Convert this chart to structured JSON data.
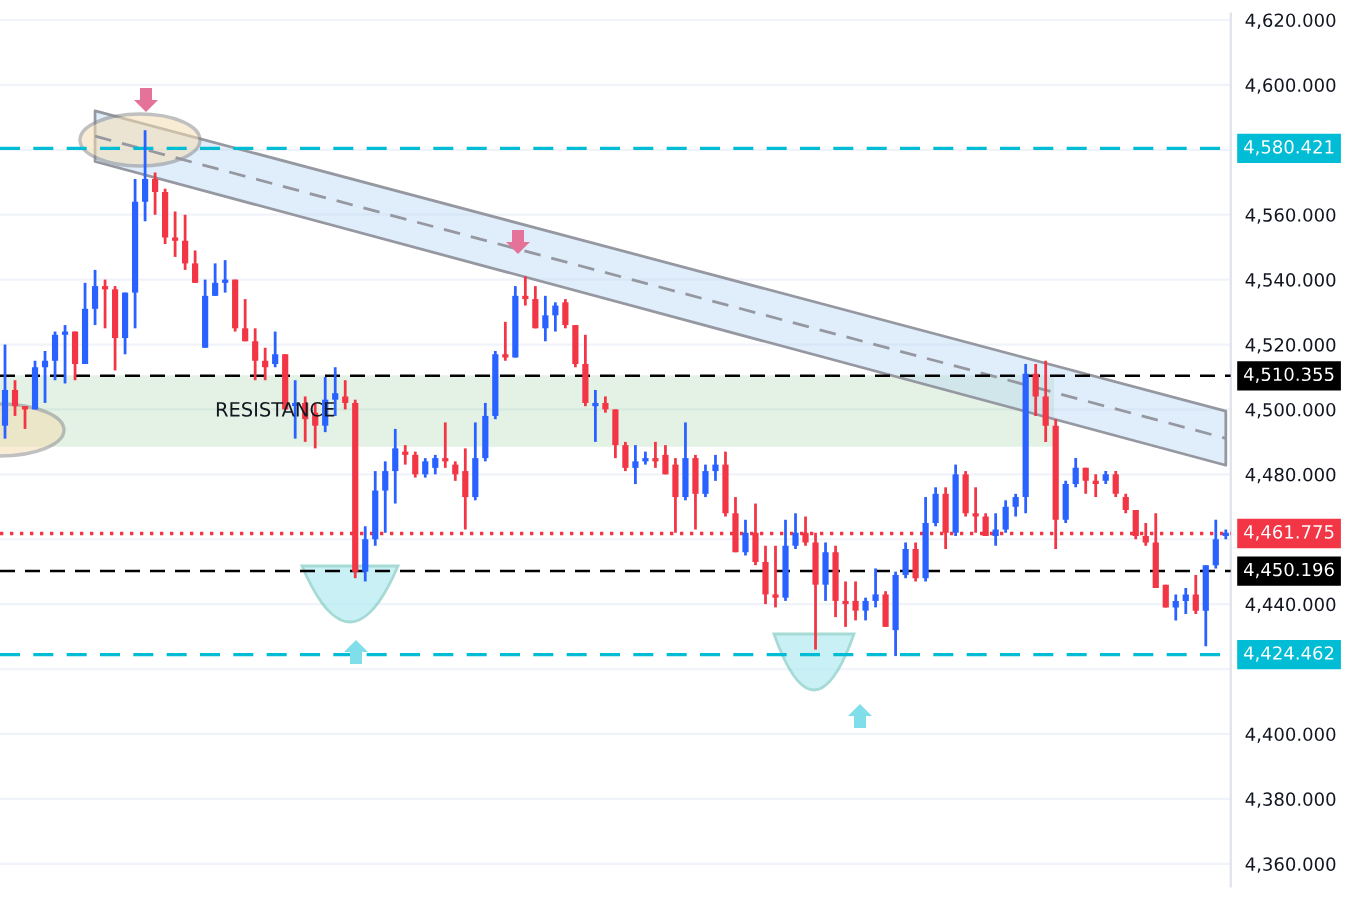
{
  "chart_data": {
    "type": "candlestick",
    "categories": [
      null,
      null,
      null,
      null,
      null,
      null,
      null,
      null,
      null,
      null,
      null,
      null,
      null,
      null,
      null,
      null,
      null,
      null,
      null,
      null,
      null,
      null,
      null,
      null,
      null,
      null,
      null,
      null,
      null,
      null,
      null,
      null,
      null,
      null,
      null,
      null,
      null,
      null,
      null,
      null,
      null,
      null,
      null,
      null,
      null,
      null,
      null,
      null,
      null,
      null,
      null,
      null,
      null,
      null,
      null,
      null,
      null,
      null,
      null,
      null,
      null,
      null,
      null,
      null,
      null,
      null,
      null,
      null,
      null,
      null,
      null,
      null,
      null,
      null,
      null,
      null,
      null,
      null,
      null,
      null,
      null,
      null,
      null,
      null,
      null,
      null,
      null,
      null,
      null,
      null,
      null,
      null,
      null,
      null,
      null,
      null,
      null,
      null,
      null,
      null,
      null,
      null,
      null,
      null,
      null,
      null,
      null,
      null,
      null,
      null,
      null,
      null,
      null,
      null,
      null,
      null,
      null,
      null,
      null,
      null,
      null,
      null,
      null
    ],
    "ohlc": [
      [
        4495,
        4520,
        4491,
        4506
      ],
      [
        4506,
        4509,
        4498,
        4501
      ],
      [
        4501,
        4501,
        4494,
        4500
      ],
      [
        4500,
        4515,
        4500,
        4513
      ],
      [
        4513,
        4518,
        4502,
        4515
      ],
      [
        4515,
        4524,
        4509,
        4523
      ],
      [
        4523,
        4526,
        4508,
        4524
      ],
      [
        4524,
        4524,
        4509,
        4514
      ],
      [
        4514,
        4539,
        4514,
        4531
      ],
      [
        4531,
        4543,
        4526,
        4538
      ],
      [
        4538,
        4540,
        4525,
        4537
      ],
      [
        4537,
        4538,
        4512,
        4522
      ],
      [
        4522,
        4536,
        4517,
        4536
      ],
      [
        4536,
        4571,
        4525,
        4564
      ],
      [
        4564,
        4586,
        4558,
        4571
      ],
      [
        4571,
        4573,
        4560,
        4567
      ],
      [
        4567,
        4568,
        4551,
        4553
      ],
      [
        4553,
        4561,
        4547,
        4552
      ],
      [
        4552,
        4560,
        4543,
        4545
      ],
      [
        4545,
        4549,
        4539,
        4539
      ],
      [
        4519,
        4540,
        4519,
        4535
      ],
      [
        4535,
        4545,
        4535,
        4539
      ],
      [
        4539,
        4546,
        4536,
        4540
      ],
      [
        4540,
        4540,
        4524,
        4525
      ],
      [
        4525,
        4534,
        4521,
        4521
      ],
      [
        4521,
        4525,
        4509,
        4515
      ],
      [
        4515,
        4519,
        4509,
        4513
      ],
      [
        4514,
        4524,
        4513,
        4517
      ],
      [
        4517,
        4517,
        4500,
        4500
      ],
      [
        4501,
        4509,
        4491,
        4502
      ],
      [
        4502,
        4504,
        4490,
        4497
      ],
      [
        4499,
        4502,
        4488,
        4495
      ],
      [
        4495,
        4510,
        4493,
        4503
      ],
      [
        4503,
        4513,
        4498,
        4505
      ],
      [
        4504,
        4509,
        4500,
        4502
      ],
      [
        4502,
        4503,
        4448,
        4450
      ],
      [
        4450,
        4464,
        4447,
        4460
      ],
      [
        4460,
        4481,
        4458,
        4475
      ],
      [
        4475,
        4484,
        4462,
        4481
      ],
      [
        4481,
        4494,
        4471,
        4488
      ],
      [
        4487,
        4489,
        4483,
        4486
      ],
      [
        4486,
        4487,
        4479,
        4480
      ],
      [
        4480,
        4485,
        4479,
        4484
      ],
      [
        4482,
        4486,
        4480,
        4485
      ],
      [
        4485,
        4496,
        4482,
        4484
      ],
      [
        4483,
        4484,
        4478,
        4480
      ],
      [
        4481,
        4488,
        4463,
        4473
      ],
      [
        4473,
        4496,
        4472,
        4485
      ],
      [
        4485,
        4502,
        4484,
        4498
      ],
      [
        4498,
        4518,
        4497,
        4517
      ],
      [
        4517,
        4527,
        4515,
        4516
      ],
      [
        4516,
        4538,
        4516,
        4535
      ],
      [
        4535,
        4541,
        4532,
        4534
      ],
      [
        4534,
        4538,
        4525,
        4525
      ],
      [
        4525,
        4535,
        4521,
        4529
      ],
      [
        4529,
        4533,
        4524,
        4532
      ],
      [
        4533,
        4534,
        4525,
        4526
      ],
      [
        4526,
        4526,
        4513,
        4514
      ],
      [
        4514,
        4523,
        4501,
        4502
      ],
      [
        4501,
        4506,
        4490,
        4502
      ],
      [
        4502,
        4504,
        4499,
        4500
      ],
      [
        4500,
        4500,
        4485,
        4489
      ],
      [
        4489,
        4490,
        4481,
        4482
      ],
      [
        4482,
        4489,
        4477,
        4484
      ],
      [
        4484,
        4487,
        4483,
        4485
      ],
      [
        4485,
        4490,
        4482,
        4484
      ],
      [
        4486,
        4489,
        4480,
        4480
      ],
      [
        4483,
        4485,
        4462,
        4473
      ],
      [
        4473,
        4496,
        4472,
        4485
      ],
      [
        4485,
        4486,
        4463,
        4474
      ],
      [
        4474,
        4483,
        4473,
        4481
      ],
      [
        4481,
        4486,
        4478,
        4483
      ],
      [
        4483,
        4487,
        4467,
        4468
      ],
      [
        4468,
        4473,
        4456,
        4456
      ],
      [
        4456,
        4466,
        4455,
        4462
      ],
      [
        4462,
        4471,
        4452,
        4453
      ],
      [
        4453,
        4458,
        4440,
        4443
      ],
      [
        4443,
        4458,
        4439,
        4442
      ],
      [
        4442,
        4466,
        4441,
        4458
      ],
      [
        4458,
        4468,
        4457,
        4462
      ],
      [
        4462,
        4467,
        4458,
        4459
      ],
      [
        4459,
        4462,
        4426,
        4446
      ],
      [
        4446,
        4459,
        4441,
        4456
      ],
      [
        4456,
        4458,
        4436,
        4441
      ],
      [
        4441,
        4447,
        4433,
        4440
      ],
      [
        4441,
        4447,
        4435,
        4438
      ],
      [
        4438,
        4442,
        4435,
        4441
      ],
      [
        4441,
        4451,
        4439,
        4443
      ],
      [
        4443,
        4444,
        4433,
        4433
      ],
      [
        4432,
        4450,
        4424,
        4449
      ],
      [
        4449,
        4459,
        4448,
        4457
      ],
      [
        4457,
        4459,
        4447,
        4448
      ],
      [
        4448,
        4473,
        4447,
        4465
      ],
      [
        4465,
        4476,
        4464,
        4474
      ],
      [
        4474,
        4476,
        4457,
        4462
      ],
      [
        4462,
        4483,
        4461,
        4480
      ],
      [
        4480,
        4481,
        4467,
        4468
      ],
      [
        4468,
        4476,
        4462,
        4467
      ],
      [
        4467,
        4468,
        4461,
        4461
      ],
      [
        4461,
        4468,
        4458,
        4463
      ],
      [
        4463,
        4472,
        4462,
        4470
      ],
      [
        4470,
        4474,
        4467,
        4473
      ],
      [
        4473,
        4514,
        4468,
        4511
      ],
      [
        4511,
        4514,
        4498,
        4504
      ],
      [
        4504,
        4515,
        4490,
        4495
      ],
      [
        4495,
        4497,
        4457,
        4466
      ],
      [
        4466,
        4478,
        4465,
        4477
      ],
      [
        4477,
        4485,
        4476,
        4482
      ],
      [
        4482,
        4482,
        4474,
        4478
      ],
      [
        4478,
        4480,
        4473,
        4477
      ],
      [
        4478,
        4481,
        4477,
        4480
      ],
      [
        4480,
        4481,
        4473,
        4474
      ],
      [
        4473,
        4474,
        4468,
        4469
      ],
      [
        4469,
        4469,
        4460,
        4461
      ],
      [
        4461,
        4465,
        4458,
        4459
      ],
      [
        4459,
        4468,
        4445,
        4445
      ],
      [
        4446,
        4446,
        4439,
        4439
      ],
      [
        4439,
        4443,
        4435,
        4441
      ],
      [
        4441,
        4445,
        4437,
        4443
      ],
      [
        4443,
        4449,
        4437,
        4438
      ],
      [
        4438,
        4452,
        4427,
        4452
      ],
      [
        4452,
        4466,
        4451,
        4460
      ],
      [
        4461,
        4463,
        4460,
        4462
      ]
    ],
    "colors": [
      "#2962ff",
      "#f23645",
      "#f23645",
      "#2962ff",
      "#2962ff",
      "#2962ff",
      "#2962ff",
      "#f23645",
      "#2962ff",
      "#2962ff",
      "#f23645",
      "#f23645",
      "#2962ff",
      "#2962ff",
      "#2962ff",
      "#f23645",
      "#f23645",
      "#f23645",
      "#f23645",
      "#f23645",
      "#2962ff",
      "#2962ff",
      "#2962ff",
      "#f23645",
      "#f23645",
      "#f23645",
      "#f23645",
      "#2962ff",
      "#f23645",
      "#2962ff",
      "#f23645",
      "#f23645",
      "#2962ff",
      "#2962ff",
      "#f23645",
      "#f23645",
      "#2962ff",
      "#2962ff",
      "#2962ff",
      "#2962ff",
      "#f23645",
      "#f23645",
      "#2962ff",
      "#2962ff",
      "#f23645",
      "#f23645",
      "#f23645",
      "#2962ff",
      "#2962ff",
      "#2962ff",
      "#f23645",
      "#2962ff",
      "#f23645",
      "#f23645",
      "#2962ff",
      "#2962ff",
      "#f23645",
      "#f23645",
      "#f23645",
      "#2962ff",
      "#f23645",
      "#f23645",
      "#f23645",
      "#2962ff",
      "#2962ff",
      "#f23645",
      "#f23645",
      "#f23645",
      "#2962ff",
      "#f23645",
      "#2962ff",
      "#2962ff",
      "#f23645",
      "#f23645",
      "#2962ff",
      "#f23645",
      "#f23645",
      "#f23645",
      "#2962ff",
      "#2962ff",
      "#f23645",
      "#f23645",
      "#2962ff",
      "#f23645",
      "#f23645",
      "#f23645",
      "#2962ff",
      "#2962ff",
      "#f23645",
      "#2962ff",
      "#2962ff",
      "#f23645",
      "#2962ff",
      "#2962ff",
      "#f23645",
      "#2962ff",
      "#f23645",
      "#f23645",
      "#f23645",
      "#2962ff",
      "#2962ff",
      "#2962ff",
      "#2962ff",
      "#f23645",
      "#f23645",
      "#f23645",
      "#2962ff",
      "#2962ff",
      "#f23645",
      "#f23645",
      "#2962ff",
      "#f23645",
      "#f23645",
      "#f23645",
      "#f23645",
      "#f23645",
      "#f23645",
      "#2962ff",
      "#2962ff",
      "#f23645",
      "#2962ff",
      "#2962ff",
      "#2962ff"
    ],
    "series": [
      {
        "type": "line",
        "values": [
          null,
          null,
          null,
          null,
          null,
          null,
          null,
          null,
          null,
          4584.2,
          null,
          null,
          null,
          null,
          null,
          null,
          null,
          null,
          null,
          null,
          null,
          null,
          null,
          null,
          null,
          null,
          null,
          null,
          null,
          null,
          null,
          null,
          null,
          null,
          null,
          null,
          null,
          null,
          null,
          null,
          null,
          null,
          null,
          null,
          null,
          null,
          null,
          null,
          null,
          null,
          null,
          null,
          null,
          null,
          null,
          null,
          null,
          null,
          null,
          null,
          null,
          null,
          null,
          null,
          null,
          null,
          null,
          null,
          null,
          null,
          null,
          null,
          null,
          null,
          null,
          null,
          null,
          null,
          null,
          null,
          null,
          null,
          null,
          null,
          null,
          null,
          null,
          null,
          null,
          null,
          null,
          null,
          null,
          null,
          null,
          null,
          null,
          null,
          null,
          null,
          null,
          null,
          null,
          null,
          null,
          null,
          null,
          null,
          null,
          null,
          null,
          null,
          null,
          null,
          null,
          null,
          null,
          null,
          null,
          null,
          null,
          null,
          4491.1
        ],
        "lower": [
          null,
          null,
          null,
          null,
          null,
          null,
          null,
          null,
          null,
          4576.4,
          null,
          null,
          null,
          null,
          null,
          null,
          null,
          null,
          null,
          null,
          null,
          null,
          null,
          null,
          null,
          null,
          null,
          null,
          null,
          null,
          null,
          null,
          null,
          null,
          null,
          null,
          null,
          null,
          null,
          null,
          null,
          null,
          null,
          null,
          null,
          null,
          null,
          null,
          null,
          null,
          null,
          null,
          null,
          null,
          null,
          null,
          null,
          null,
          null,
          null,
          null,
          null,
          null,
          null,
          null,
          null,
          null,
          null,
          null,
          null,
          null,
          null,
          null,
          null,
          null,
          null,
          null,
          null,
          null,
          null,
          null,
          null,
          null,
          null,
          null,
          null,
          null,
          null,
          null,
          null,
          null,
          null,
          null,
          null,
          null,
          null,
          null,
          null,
          null,
          null,
          null,
          null,
          null,
          null,
          null,
          null,
          null,
          null,
          null,
          null,
          null,
          null,
          null,
          null,
          null,
          null,
          null,
          null,
          null,
          null,
          null,
          null,
          4482.8
        ],
        "upper": [
          null,
          null,
          null,
          null,
          null,
          null,
          null,
          null,
          null,
          4592.0,
          null,
          null,
          null,
          null,
          null,
          null,
          null,
          null,
          null,
          null,
          null,
          null,
          null,
          null,
          null,
          null,
          null,
          null,
          null,
          null,
          null,
          null,
          null,
          null,
          null,
          null,
          null,
          null,
          null,
          null,
          null,
          null,
          null,
          null,
          null,
          null,
          null,
          null,
          null,
          null,
          null,
          null,
          null,
          null,
          null,
          null,
          null,
          null,
          null,
          null,
          null,
          null,
          null,
          null,
          null,
          null,
          null,
          null,
          null,
          null,
          null,
          null,
          null,
          null,
          null,
          null,
          null,
          null,
          null,
          null,
          null,
          null,
          null,
          null,
          null,
          null,
          null,
          null,
          null,
          null,
          null,
          null,
          null,
          null,
          null,
          null,
          null,
          null,
          null,
          null,
          null,
          null,
          null,
          null,
          null,
          null,
          null,
          null,
          null,
          null,
          null,
          null,
          null,
          null,
          null,
          null,
          null,
          null,
          null,
          null,
          null,
          null,
          4499.5
        ],
        "color": "#9598a1",
        "line_style": "dashed"
      }
    ],
    "ylim": [
      4353,
      4622
    ],
    "yticks": [
      {
        "value": 4360,
        "label": "4,360.000"
      },
      {
        "value": 4380,
        "label": "4,380.000"
      },
      {
        "value": 4400,
        "label": "4,400.000"
      },
      {
        "value": 4420,
        "label": null
      },
      {
        "value": 4440,
        "label": "4,440.000"
      },
      {
        "value": 4460,
        "label": null
      },
      {
        "value": 4480,
        "label": "4,480.000"
      },
      {
        "value": 4500,
        "label": "4,500.000"
      },
      {
        "value": 4520,
        "label": "4,520.000"
      },
      {
        "value": 4540,
        "label": "4,540.000"
      },
      {
        "value": 4560,
        "label": "4,560.000"
      },
      {
        "value": 4580,
        "label": null
      },
      {
        "value": 4600,
        "label": "4,600.000"
      },
      {
        "value": 4620,
        "label": "4,620.000"
      }
    ],
    "ref_lines": [
      {
        "axis": "y",
        "value": 4580.421,
        "label": "4,580.421",
        "color": "#00bcd4",
        "line_style": "dashed"
      },
      {
        "axis": "y",
        "value": 4510.355,
        "label": "4,510.355",
        "color": "#000000",
        "line_style": "dashed"
      },
      {
        "axis": "y",
        "value": 4461.775,
        "label": "4,461.775",
        "color": "#f23645",
        "line_style": "dotted"
      },
      {
        "axis": "y",
        "value": 4450.196,
        "label": "4,450.196",
        "color": "#000000",
        "line_style": "dashed"
      },
      {
        "axis": "y",
        "value": 4424.462,
        "label": "4,424.462",
        "color": "#00bcd4",
        "line_style": "dashed"
      }
    ],
    "bands": [
      {
        "axis": "y",
        "from": 4489,
        "to": 4510,
        "label": "RESISTANCE",
        "color": "#4caf50"
      }
    ],
    "grid": "y",
    "tick_labels": "y"
  }
}
